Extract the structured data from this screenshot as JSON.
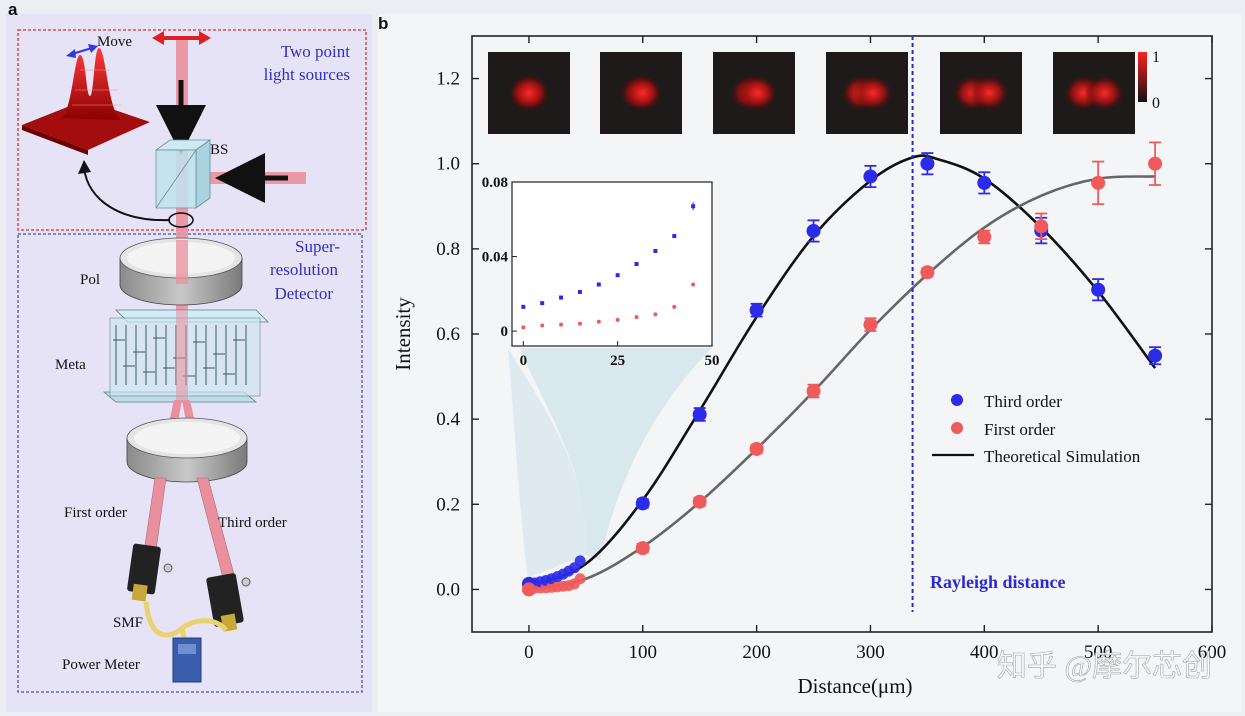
{
  "panel_a": {
    "letter": "a",
    "move_label": "Move",
    "sources_label_line1": "Two point",
    "sources_label_line2": "light sources",
    "bs_label": "BS",
    "detector_line1": "Super-",
    "detector_line2": "resolution",
    "detector_line3": "Detector",
    "pol_label": "Pol",
    "meta_label": "Meta",
    "first_order_label": "First order",
    "third_order_label": "Third order",
    "smf_label": "SMF",
    "power_meter_label": "Power Meter",
    "colors": {
      "beam": "#e9909f",
      "red_box": "#e03030",
      "blue_box": "#3a55c8",
      "label_blue": "#2f2fc0"
    }
  },
  "panel_b": {
    "letter": "b"
  },
  "colorbar": {
    "max_label": "1",
    "min_label": "0"
  },
  "rayleigh_label": "Rayleigh distance",
  "watermark": "知乎 @摩尔芯创",
  "chart_data": {
    "type": "scatter",
    "xlabel": "Distance(μm)",
    "ylabel": "Intensity",
    "xlim": [
      -50,
      600
    ],
    "ylim": [
      -0.1,
      1.3
    ],
    "xticks": [
      0,
      100,
      200,
      300,
      400,
      500,
      600
    ],
    "yticks": [
      0.0,
      0.2,
      0.4,
      0.6,
      0.8,
      1.0,
      1.2
    ],
    "rayleigh_x": 337,
    "series": [
      {
        "name": "Third order",
        "color": "#2b2be8",
        "kind": "points",
        "x": [
          0,
          100,
          150,
          200,
          250,
          300,
          350,
          400,
          450,
          500,
          550
        ],
        "y": [
          0.013,
          0.202,
          0.411,
          0.656,
          0.842,
          0.97,
          1.0,
          0.955,
          0.843,
          0.704,
          0.549
        ],
        "err": [
          0.008,
          0.01,
          0.015,
          0.015,
          0.025,
          0.025,
          0.025,
          0.025,
          0.03,
          0.025,
          0.02
        ]
      },
      {
        "name": "First order",
        "color": "#ef5a5a",
        "kind": "points",
        "x": [
          0,
          100,
          150,
          200,
          250,
          300,
          350,
          400,
          450,
          500,
          550
        ],
        "y": [
          0.0,
          0.097,
          0.206,
          0.33,
          0.466,
          0.622,
          0.745,
          0.828,
          0.853,
          0.955,
          1.0
        ],
        "err": [
          0.005,
          0.01,
          0.01,
          0.01,
          0.015,
          0.015,
          0.01,
          0.015,
          0.03,
          0.05,
          0.05
        ]
      },
      {
        "name": "Theoretical Simulation",
        "color": "#111111",
        "kind": "line",
        "x": [
          0,
          50,
          100,
          150,
          200,
          250,
          300,
          337,
          360,
          400,
          450,
          500,
          550
        ],
        "y": [
          0.008,
          0.06,
          0.21,
          0.42,
          0.64,
          0.83,
          0.96,
          1.015,
          1.01,
          0.965,
          0.85,
          0.7,
          0.52
        ]
      },
      {
        "name": "",
        "color": "#666666",
        "kind": "line",
        "x": [
          0,
          50,
          100,
          150,
          200,
          250,
          300,
          350,
          400,
          450,
          500,
          550
        ],
        "y": [
          0.0,
          0.025,
          0.1,
          0.205,
          0.33,
          0.465,
          0.61,
          0.74,
          0.85,
          0.925,
          0.965,
          0.97
        ]
      }
    ],
    "inset": {
      "xlim": [
        -3,
        50
      ],
      "ylim": [
        -0.008,
        0.08
      ],
      "xticks": [
        0,
        25,
        50
      ],
      "yticks": [
        0,
        0.04,
        0.08
      ],
      "ytick_labels": [
        "0",
        "0.04",
        "0.08"
      ],
      "x": [
        0,
        5,
        10,
        15,
        20,
        25,
        30,
        35,
        40,
        45
      ],
      "third_y": [
        0.013,
        0.015,
        0.018,
        0.021,
        0.025,
        0.03,
        0.036,
        0.043,
        0.051,
        0.067
      ],
      "first_y": [
        0.002,
        0.003,
        0.0035,
        0.004,
        0.005,
        0.006,
        0.0075,
        0.009,
        0.013,
        0.025
      ]
    },
    "legend": {
      "position": "right-middle",
      "entries": [
        "Third order",
        "First order",
        "Theoretical Simulation"
      ]
    },
    "thumbnails": [
      {
        "separation": 0.0
      },
      {
        "separation": 0.12
      },
      {
        "separation": 0.28
      },
      {
        "separation": 0.45
      },
      {
        "separation": 0.6
      },
      {
        "separation": 0.75
      }
    ]
  }
}
